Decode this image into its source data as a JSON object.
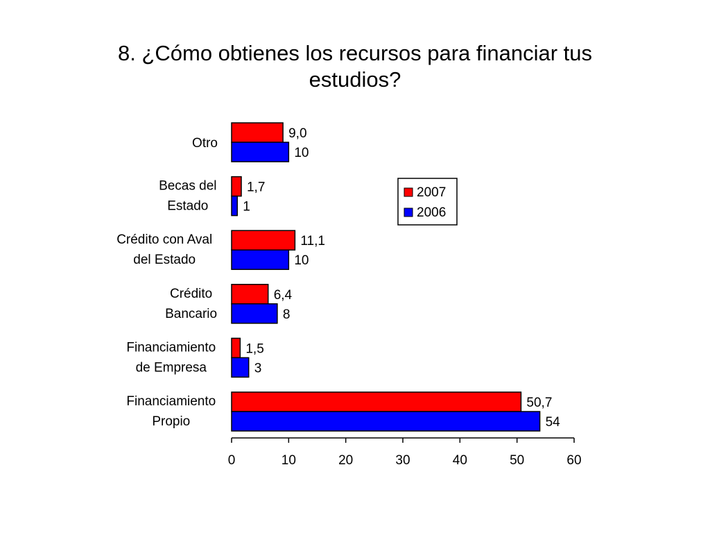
{
  "chart_data": {
    "type": "bar",
    "orientation": "horizontal",
    "title": "8. ¿Cómo obtienes los recursos para financiar tus estudios?",
    "title_lines": [
      "8. ¿Cómo obtienes los recursos para financiar tus",
      "estudios?"
    ],
    "categories": [
      {
        "lines": [
          "Otro"
        ]
      },
      {
        "lines": [
          "Becas del",
          "Estado"
        ]
      },
      {
        "lines": [
          "Crédito con Aval",
          "del Estado"
        ]
      },
      {
        "lines": [
          "Crédito",
          "Bancario"
        ]
      },
      {
        "lines": [
          "Financiamiento",
          "de Empresa"
        ]
      },
      {
        "lines": [
          "Financiamiento",
          "Propio"
        ]
      }
    ],
    "series": [
      {
        "name": "2007",
        "color": "#ff0000",
        "values": [
          9.0,
          1.7,
          11.1,
          6.4,
          1.5,
          50.7
        ],
        "labels": [
          "9,0",
          "1,7",
          "11,1",
          "6,4",
          "1,5",
          "50,7"
        ]
      },
      {
        "name": "2006",
        "color": "#0000ff",
        "values": [
          10,
          1,
          10,
          8,
          3,
          54
        ],
        "labels": [
          "10",
          "1",
          "10",
          "8",
          "3",
          "54"
        ]
      }
    ],
    "xlim": [
      0,
      60
    ],
    "xticks": [
      "0",
      "10",
      "20",
      "30",
      "40",
      "50",
      "60"
    ],
    "xlabel": "",
    "ylabel": "",
    "grid": false,
    "legend_position": "top-right"
  }
}
